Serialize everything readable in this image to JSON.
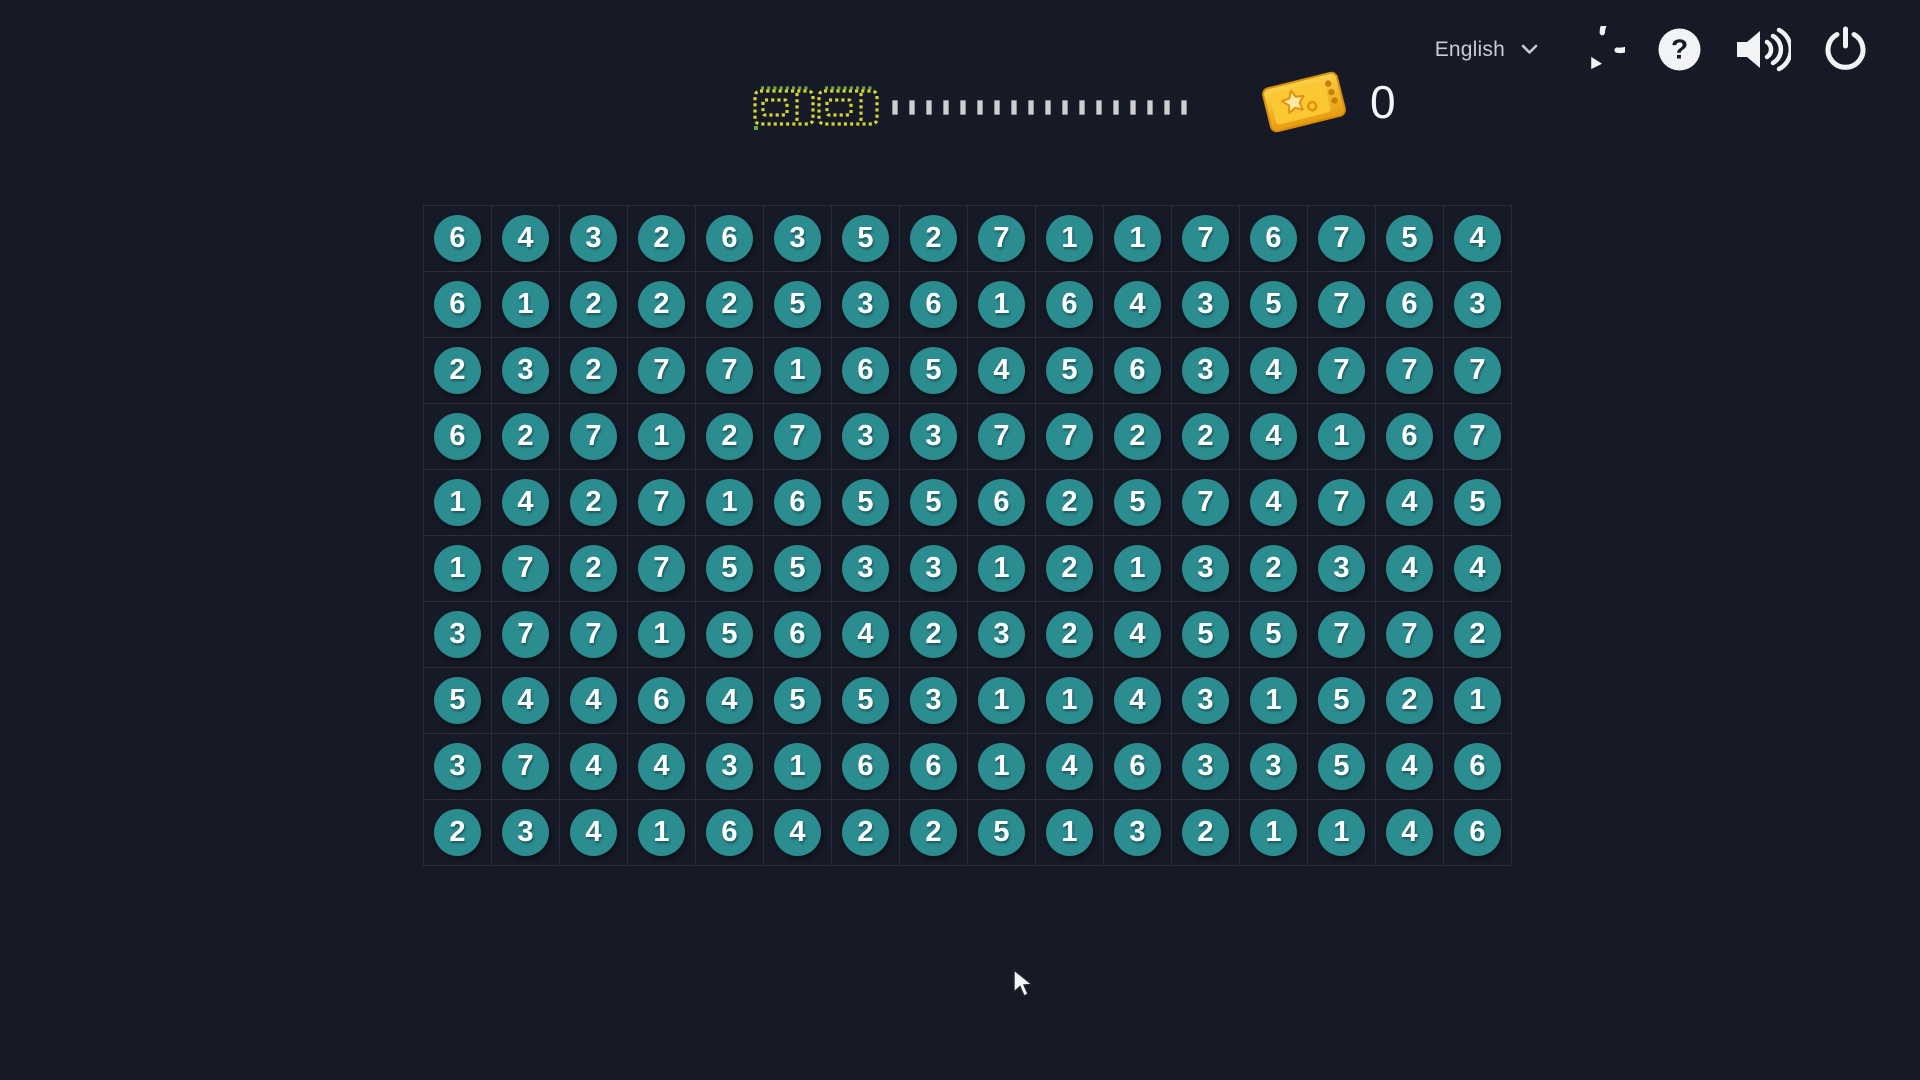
{
  "header": {
    "language": {
      "label": "English"
    },
    "buttons": [
      {
        "name": "restart-button",
        "icon": "restart-icon"
      },
      {
        "name": "help-button",
        "icon": "help-icon"
      },
      {
        "name": "volume-button",
        "icon": "volume-icon"
      },
      {
        "name": "power-button",
        "icon": "power-icon"
      }
    ],
    "progress": {
      "pixel_ticket_count": 2,
      "dash_count": 18
    },
    "ticket_counter": {
      "value": "0",
      "icon": "golden-ticket-icon"
    }
  },
  "board": {
    "rows": 10,
    "cols": 16,
    "cells": [
      [
        6,
        4,
        3,
        2,
        6,
        3,
        5,
        2,
        7,
        1,
        1,
        7,
        6,
        7,
        5,
        4
      ],
      [
        6,
        1,
        2,
        2,
        2,
        5,
        3,
        6,
        1,
        6,
        4,
        3,
        5,
        7,
        6,
        3
      ],
      [
        2,
        3,
        2,
        7,
        7,
        1,
        6,
        5,
        4,
        5,
        6,
        3,
        4,
        7,
        7,
        7
      ],
      [
        6,
        2,
        7,
        1,
        2,
        7,
        3,
        3,
        7,
        7,
        2,
        2,
        4,
        1,
        6,
        7
      ],
      [
        1,
        4,
        2,
        7,
        1,
        6,
        5,
        5,
        6,
        2,
        5,
        7,
        4,
        7,
        4,
        5
      ],
      [
        1,
        7,
        2,
        7,
        5,
        5,
        3,
        3,
        1,
        2,
        1,
        3,
        2,
        3,
        4,
        4
      ],
      [
        3,
        7,
        7,
        1,
        5,
        6,
        4,
        2,
        3,
        2,
        4,
        5,
        5,
        7,
        7,
        2
      ],
      [
        5,
        4,
        4,
        6,
        4,
        5,
        5,
        3,
        1,
        1,
        4,
        3,
        1,
        5,
        2,
        1
      ],
      [
        3,
        7,
        4,
        4,
        3,
        1,
        6,
        6,
        1,
        4,
        6,
        3,
        3,
        5,
        4,
        6
      ],
      [
        2,
        3,
        4,
        1,
        6,
        4,
        2,
        2,
        5,
        1,
        3,
        2,
        1,
        1,
        4,
        6
      ]
    ]
  },
  "colors": {
    "background": "#161a26",
    "grid_line": "#272d3d",
    "tile": "#2b8d90",
    "tile_text": "#ffffff",
    "dash": "#cfcfcf",
    "pixel_yellow": "#d9d430",
    "pixel_green": "#6aa844",
    "ticket_gold": "#f3ab16",
    "ticket_gold_light": "#fcd24a",
    "header_text": "#c6cbd5",
    "icon": "#f2f3f5"
  }
}
